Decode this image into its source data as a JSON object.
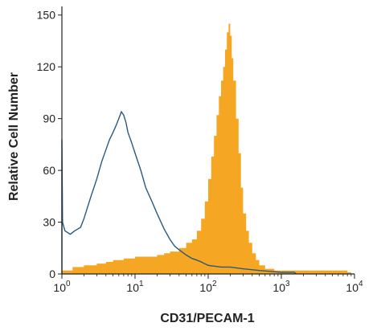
{
  "chart_data": {
    "type": "area",
    "xlabel": "CD31/PECAM-1",
    "ylabel": "Relative Cell Number",
    "xscale": "log10",
    "xlim": [
      1,
      10000
    ],
    "ylim": [
      0,
      155
    ],
    "y_ticks": [
      0,
      30,
      60,
      90,
      120,
      150
    ],
    "x_ticks": [
      {
        "value": 1,
        "base": "10",
        "exp": "0"
      },
      {
        "value": 10,
        "base": "10",
        "exp": "1"
      },
      {
        "value": 100,
        "base": "10",
        "exp": "2"
      },
      {
        "value": 1000,
        "base": "10",
        "exp": "3"
      },
      {
        "value": 10000,
        "base": "10",
        "exp": "4"
      }
    ],
    "series": [
      {
        "style": "filled",
        "color": "#f5a623",
        "x": [
          1,
          1.4,
          2,
          3,
          4,
          5,
          7,
          10,
          15,
          20,
          25,
          30,
          40,
          50,
          60,
          70,
          80,
          90,
          100,
          110,
          120,
          130,
          140,
          150,
          160,
          170,
          180,
          190,
          200,
          210,
          220,
          240,
          260,
          280,
          300,
          330,
          360,
          400,
          450,
          500,
          600,
          800,
          1000,
          1500,
          2000,
          3000,
          5000,
          8000,
          9000
        ],
        "y": [
          2,
          4,
          5,
          6,
          7,
          8,
          9,
          10,
          10,
          11,
          12,
          13,
          15,
          18,
          20,
          25,
          32,
          42,
          55,
          68,
          80,
          92,
          103,
          112,
          120,
          130,
          140,
          145,
          138,
          125,
          112,
          90,
          70,
          50,
          35,
          25,
          18,
          12,
          8,
          5,
          3,
          2,
          2,
          2,
          2,
          2,
          2,
          1,
          0
        ]
      },
      {
        "style": "outline",
        "color": "#2a5a7e",
        "x": [
          1,
          1.02,
          1.1,
          1.3,
          1.5,
          1.8,
          2,
          2.5,
          3,
          3.5,
          4,
          4.5,
          5,
          5.5,
          6,
          6.5,
          7,
          7.5,
          8,
          9,
          10,
          12,
          14,
          17,
          20,
          25,
          30,
          35,
          40,
          50,
          60,
          70,
          80,
          100,
          150,
          200,
          300,
          500,
          1000,
          1500,
          1600
        ],
        "y": [
          78,
          30,
          25,
          23,
          25,
          27,
          32,
          45,
          55,
          65,
          72,
          78,
          82,
          86,
          90,
          94,
          92,
          88,
          82,
          76,
          70,
          60,
          50,
          42,
          35,
          26,
          20,
          16,
          14,
          11,
          9,
          8,
          7,
          5,
          4,
          4,
          3,
          2,
          1,
          1,
          0
        ]
      }
    ]
  }
}
